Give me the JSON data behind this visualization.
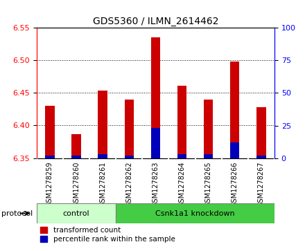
{
  "title": "GDS5360 / ILMN_2614462",
  "samples": [
    "GSM1278259",
    "GSM1278260",
    "GSM1278261",
    "GSM1278262",
    "GSM1278263",
    "GSM1278264",
    "GSM1278265",
    "GSM1278266",
    "GSM1278267"
  ],
  "transformed_count": [
    6.43,
    6.387,
    6.453,
    6.44,
    6.535,
    6.461,
    6.44,
    6.498,
    6.428
  ],
  "percentile_rank": [
    2,
    2,
    3,
    2,
    23,
    3,
    3,
    12,
    2
  ],
  "ylim_left": [
    6.35,
    6.55
  ],
  "ylim_right": [
    0,
    100
  ],
  "yticks_left": [
    6.35,
    6.4,
    6.45,
    6.5,
    6.55
  ],
  "yticks_right": [
    0,
    25,
    50,
    75,
    100
  ],
  "bar_color_red": "#cc0000",
  "bar_color_blue": "#0000bb",
  "bg_color": "#ffffff",
  "xtick_bg": "#d8d8d8",
  "control_color_light": "#ccffcc",
  "knockdown_color": "#44cc44",
  "control_indices": [
    0,
    1,
    2
  ],
  "knockdown_indices": [
    3,
    4,
    5,
    6,
    7,
    8
  ],
  "protocol_label": "protocol",
  "control_label": "control",
  "knockdown_label": "Csnk1a1 knockdown",
  "legend_red": "transformed count",
  "legend_blue": "percentile rank within the sample",
  "bar_width": 0.35,
  "base_value": 6.35
}
